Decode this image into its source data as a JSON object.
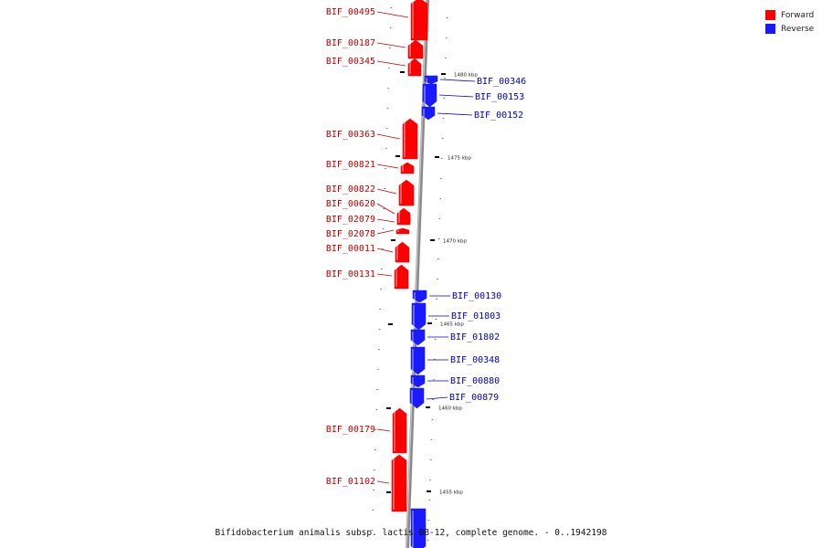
{
  "legend": {
    "forward": {
      "label": "Forward",
      "color": "#ff0000"
    },
    "reverse": {
      "label": "Reverse",
      "color": "#1a1aff"
    }
  },
  "caption": "Bifidobacterium animalis subsp. lactis BB-12, complete genome. - 0..1942198",
  "axis_ticks": [
    "1480 kbp",
    "1475 kbp",
    "1470 kbp",
    "1465 kbp",
    "1460 kbp",
    "1455 kbp"
  ],
  "forward_genes": [
    "BIF_00495",
    "BIF_00187",
    "BIF_00345",
    "BIF_00363",
    "BIF_00821",
    "BIF_00822",
    "BIF_00620",
    "BIF_02079",
    "BIF_02078",
    "BIF_00011",
    "BIF_00131",
    "BIF_00179",
    "BIF_01102"
  ],
  "reverse_genes": [
    "BIF_00346",
    "BIF_00153",
    "BIF_00152",
    "BIF_00130",
    "BIF_01803",
    "BIF_01802",
    "BIF_00348",
    "BIF_00880",
    "BIF_00879"
  ],
  "colors": {
    "forward_label": "#cc0000",
    "reverse_label": "#0000cc",
    "backbone": "#999999"
  }
}
